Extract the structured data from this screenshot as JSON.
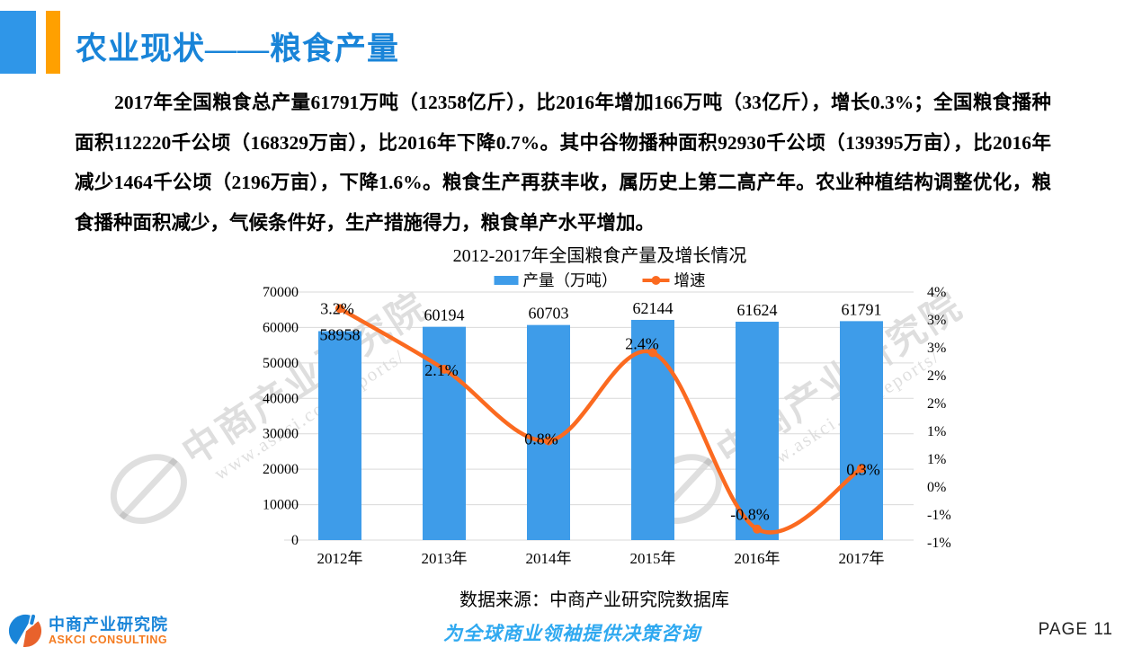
{
  "page": {
    "title": "农业现状——粮食产量"
  },
  "body": {
    "paragraph": "2017年全国粮食总产量61791万吨（12358亿斤），比2016年增加166万吨（33亿斤），增长0.3%；全国粮食播种面积112220千公顷（168329万亩），比2016年下降0.7%。其中谷物播种面积92930千公顷（139395万亩），比2016年减少1464千公顷（2196万亩），下降1.6%。粮食生产再获丰收，属历史上第二高产年。农业种植结构调整优化，粮食播种面积减少，气候条件好，生产措施得力，粮食单产水平增加。"
  },
  "chart_data": {
    "type": "bar+line combo",
    "title": "2012-2017年全国粮食产量及增长情况",
    "categories": [
      "2012年",
      "2013年",
      "2014年",
      "2015年",
      "2016年",
      "2017年"
    ],
    "series": [
      {
        "name": "产量（万吨）",
        "type": "bar",
        "axis": "left",
        "color": "#3E9CE9",
        "values": [
          58958,
          60194,
          60703,
          62144,
          61624,
          61791
        ]
      },
      {
        "name": "增速",
        "type": "line",
        "axis": "right",
        "color": "#FB6A20",
        "values": [
          3.2,
          2.1,
          0.8,
          2.4,
          -0.8,
          0.3
        ],
        "labels": [
          "3.2%",
          "2.1%",
          "0.8%",
          "2.4%",
          "-0.8%",
          "0.3%"
        ]
      }
    ],
    "bar_labels": [
      "58958",
      "60194",
      "60703",
      "62144",
      "61624",
      "61791"
    ],
    "left_axis": {
      "min": 0,
      "max": 70000,
      "step": 10000,
      "tick_labels": [
        "0",
        "10000",
        "20000",
        "30000",
        "40000",
        "50000",
        "60000",
        "70000"
      ]
    },
    "right_axis": {
      "min": -1,
      "max": 3.5,
      "step": 0.5,
      "tick_labels": [
        "4%",
        "3%",
        "3%",
        "2%",
        "2%",
        "1%",
        "1%",
        "0%",
        "-1%",
        "-1%"
      ]
    },
    "grid": true,
    "legend_position": "top",
    "legend": [
      {
        "label": "产量（万吨）",
        "type": "bar",
        "color": "#3E9CE9"
      },
      {
        "label": "增速",
        "type": "line",
        "color": "#FB6A20"
      }
    ]
  },
  "source_note": "数据来源：中商产业研究院数据库",
  "watermark": {
    "text": "中商产业研究院",
    "url": "www.askci.com/reports/"
  },
  "footer": {
    "logo_cn": "中商产业研究院",
    "logo_en": "ASKCI CONSULTING",
    "slogan": "为全球商业领袖提供决策咨询",
    "page": "PAGE 11"
  },
  "colors": {
    "title_blue": "#1984D8",
    "bar_blue": "#3E9CE9",
    "line_orange": "#FB6A20",
    "slogan_blue": "#2FA9F0",
    "logo_orange": "#F47B20",
    "deco_square_blue": "#2F96E8",
    "deco_bar_orange": "#FFA000",
    "gridline_gray": "#D9D9D9"
  }
}
